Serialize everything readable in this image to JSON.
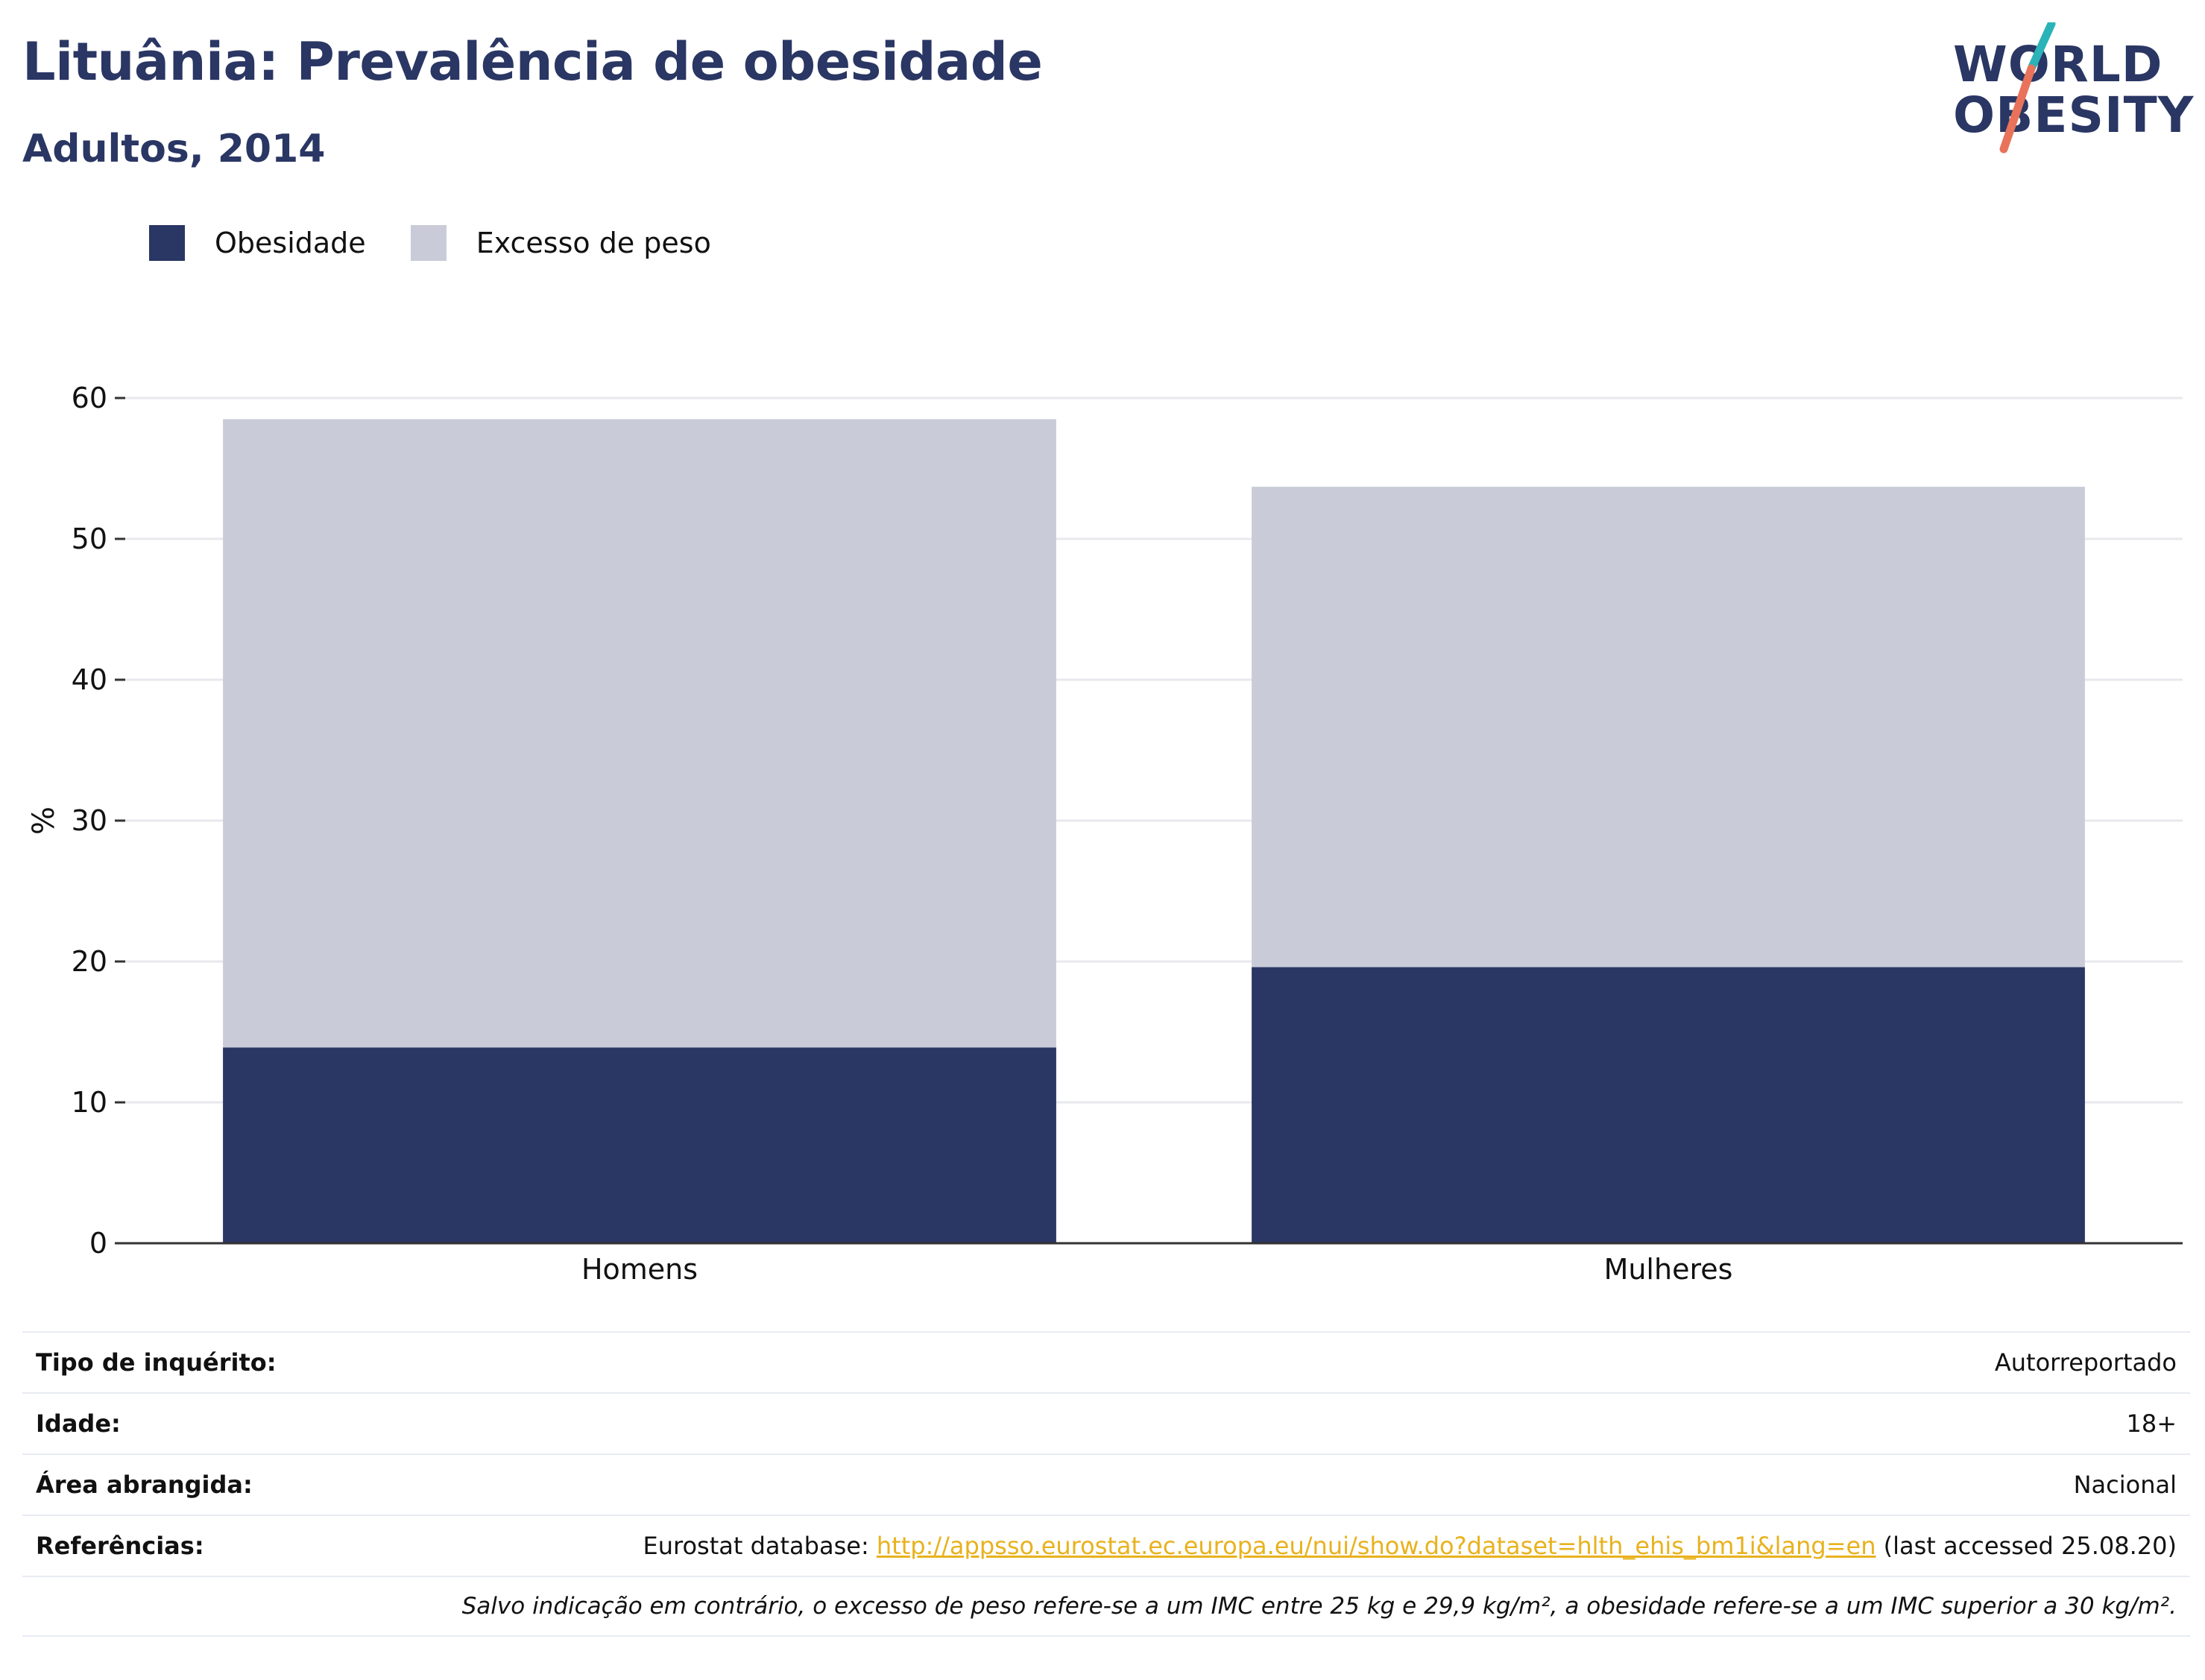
{
  "header": {
    "title": "Lituânia: Prevalência de obesidade",
    "subtitle": "Adultos, 2014"
  },
  "logo": {
    "line1": "WORLD",
    "line2": "OBESITY",
    "accent_teal": "#2ab3b8",
    "accent_coral": "#e8735a"
  },
  "colors": {
    "obesity": "#2a3663",
    "overweight": "#c9ccd8",
    "title": "#2a3663",
    "link": "#e8b21e"
  },
  "chart_data": {
    "type": "bar",
    "stacked": true,
    "categories": [
      "Homens",
      "Mulheres"
    ],
    "series": [
      {
        "name": "Obesidade",
        "values": [
          13.9,
          19.6
        ],
        "color": "#2a3663"
      },
      {
        "name": "Excesso de peso",
        "values": [
          44.6,
          34.1
        ],
        "color": "#c9ccd8"
      }
    ],
    "ylabel": "%",
    "ylim": [
      0,
      60
    ],
    "yticks": [
      0,
      10,
      20,
      30,
      40,
      50,
      60
    ],
    "grid": true,
    "legend_position": "top-left"
  },
  "info": {
    "survey_type_label": "Tipo de inquérito:",
    "survey_type_value": "Autorreportado",
    "age_label": "Idade:",
    "age_value": "18+",
    "area_label": "Área abrangida:",
    "area_value": "Nacional",
    "references_label": "Referências:",
    "references_prefix": "Eurostat database: ",
    "references_link": "http://appsso.eurostat.ec.europa.eu/nui/show.do?dataset=hlth_ehis_bm1i&lang=en",
    "references_suffix": " (last accessed 25.08.20)",
    "note": "Salvo indicação em contrário, o excesso de peso refere-se a um IMC entre 25 kg e 29,9 kg/m², a obesidade refere-se a um IMC superior a 30 kg/m²."
  }
}
